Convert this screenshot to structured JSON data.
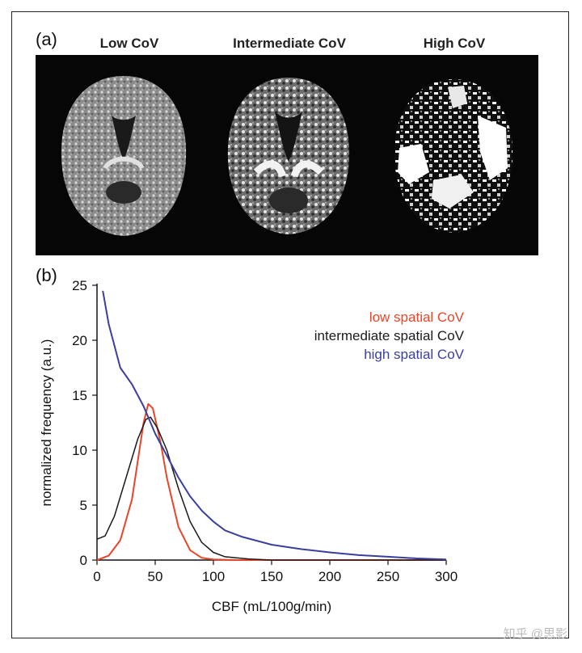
{
  "panel_a": {
    "label": "(a)",
    "titles": [
      "Low CoV",
      "Intermediate CoV",
      "High CoV"
    ]
  },
  "panel_b": {
    "label": "(b)"
  },
  "colors": {
    "low": "#e8452a",
    "intermediate": "#1a1a1a",
    "high": "#3a3f9e"
  },
  "watermark": "知乎 @思影",
  "chart_data": {
    "type": "line",
    "xlabel": "CBF (mL/100g/min)",
    "ylabel": "normalized frequency (a.u.)",
    "xlim": [
      0,
      300
    ],
    "ylim": [
      0,
      25
    ],
    "xticks": [
      0,
      50,
      100,
      150,
      200,
      250,
      300
    ],
    "yticks": [
      0,
      5,
      10,
      15,
      20,
      25
    ],
    "grid": false,
    "legend_position": "top-right",
    "series": [
      {
        "name": "low spatial CoV",
        "x": [
          0,
          10,
          20,
          30,
          35,
          40,
          44,
          48,
          55,
          60,
          70,
          80,
          90,
          100,
          120,
          140,
          300
        ],
        "y": [
          0,
          0.4,
          1.8,
          5.5,
          9.0,
          12.5,
          14.2,
          13.8,
          10.5,
          7.5,
          3.0,
          0.9,
          0.2,
          0.05,
          0,
          0,
          0
        ]
      },
      {
        "name": "intermediate spatial CoV",
        "x": [
          0,
          7,
          15,
          25,
          35,
          42,
          46,
          52,
          60,
          70,
          80,
          90,
          100,
          110,
          130,
          150,
          300
        ],
        "y": [
          1.9,
          2.2,
          4.0,
          7.5,
          11.0,
          12.8,
          13.0,
          12.0,
          10.0,
          6.5,
          3.5,
          1.6,
          0.7,
          0.3,
          0.1,
          0,
          0
        ]
      },
      {
        "name": "high spatial CoV",
        "x": [
          5,
          10,
          20,
          30,
          40,
          50,
          60,
          70,
          80,
          90,
          100,
          110,
          125,
          150,
          175,
          200,
          225,
          250,
          275,
          300
        ],
        "y": [
          24.5,
          21.5,
          17.5,
          16.0,
          14.0,
          11.5,
          9.5,
          7.5,
          5.8,
          4.5,
          3.5,
          2.7,
          2.1,
          1.4,
          1.0,
          0.7,
          0.45,
          0.3,
          0.15,
          0.05
        ]
      }
    ]
  }
}
